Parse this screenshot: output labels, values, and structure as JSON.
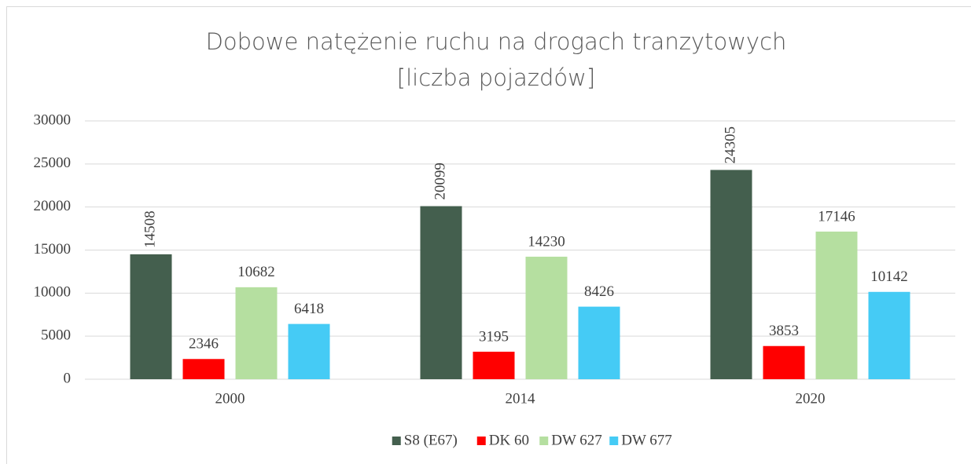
{
  "chart_data": {
    "type": "bar",
    "title": [
      "Dobowe natężenie ruchu na drogach tranzytowych",
      "[liczba pojazdów]"
    ],
    "categories": [
      "2000",
      "2014",
      "2020"
    ],
    "series": [
      {
        "name": "S8 (E67)",
        "color": "#445f4e",
        "values": [
          14508,
          20099,
          24305
        ]
      },
      {
        "name": "DK 60",
        "color": "#ff0000",
        "values": [
          2346,
          3195,
          3853
        ]
      },
      {
        "name": "DW 627",
        "color": "#b5dfa0",
        "values": [
          10682,
          14230,
          17146
        ]
      },
      {
        "name": "DW 677",
        "color": "#45cbf5",
        "values": [
          6418,
          8426,
          10142
        ]
      }
    ],
    "ylim": [
      0,
      30000
    ],
    "yticks": [
      0,
      5000,
      10000,
      15000,
      20000,
      25000,
      30000
    ],
    "grid": true,
    "legend": "bottom"
  }
}
